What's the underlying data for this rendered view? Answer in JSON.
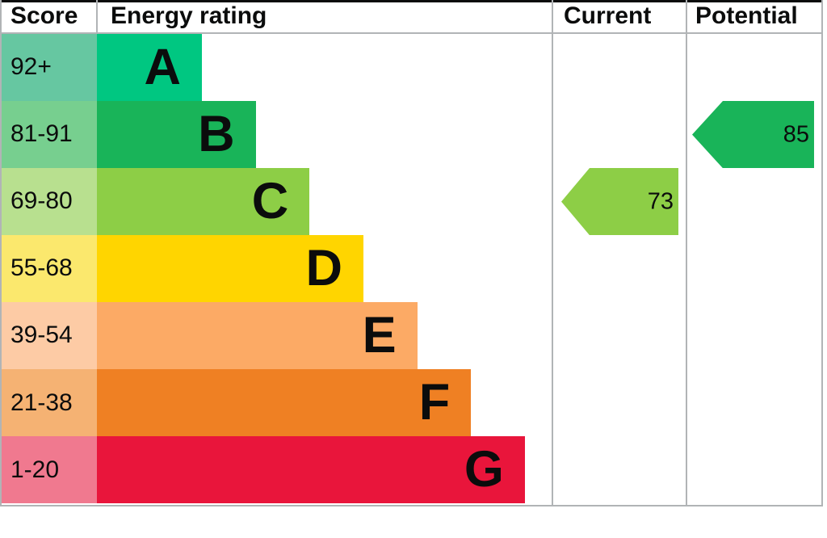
{
  "header": {
    "score": "Score",
    "energy_rating": "Energy rating",
    "current": "Current",
    "potential": "Potential"
  },
  "chart_data": {
    "type": "bar",
    "subtype": "epc-energy-rating-graph",
    "title": "Energy rating",
    "columns": [
      "Score",
      "Energy rating",
      "Current",
      "Potential"
    ],
    "bands": [
      {
        "letter": "A",
        "score_range": "92+",
        "color": "#00c781",
        "tint": "#66c7a1"
      },
      {
        "letter": "B",
        "score_range": "81-91",
        "color": "#19b459",
        "tint": "#77cf8f"
      },
      {
        "letter": "C",
        "score_range": "69-80",
        "color": "#8dce46",
        "tint": "#b8e08f"
      },
      {
        "letter": "D",
        "score_range": "55-68",
        "color": "#ffd500",
        "tint": "#fbe86d"
      },
      {
        "letter": "E",
        "score_range": "39-54",
        "color": "#fcaa65",
        "tint": "#fdcba5"
      },
      {
        "letter": "F",
        "score_range": "21-38",
        "color": "#ef8023",
        "tint": "#f5b273"
      },
      {
        "letter": "G",
        "score_range": "1-20",
        "color": "#e9153b",
        "tint": "#f0798f"
      }
    ],
    "current": {
      "value": "73",
      "band": "C",
      "color": "#8dce46"
    },
    "potential": {
      "value": "85",
      "band": "B",
      "color": "#19b459"
    }
  },
  "colors": {
    "text": "#0b0c0c",
    "border_grey": "#b1b4b6",
    "top_border": "#0b0c0c",
    "background": "#ffffff"
  }
}
